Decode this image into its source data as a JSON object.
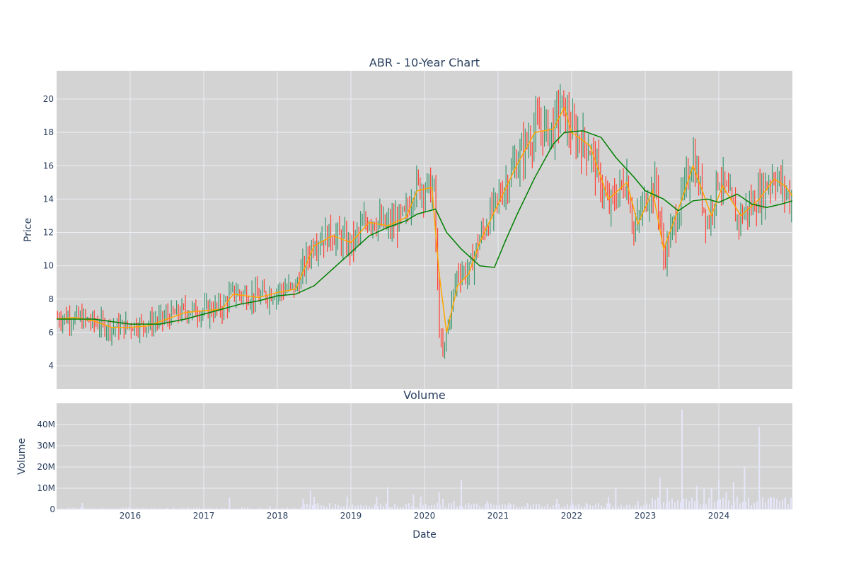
{
  "chart_data": [
    {
      "type": "candlestick",
      "title": "ABR - 10-Year Chart",
      "ylabel": "Price",
      "ylim": [
        2.6,
        21.7
      ],
      "yticks": [
        4,
        6,
        8,
        10,
        12,
        14,
        16,
        18,
        20
      ],
      "xlim": [
        2015.0,
        2025.0
      ],
      "grid": true,
      "legend": "none",
      "colors": {
        "increasing": "#3d9970",
        "decreasing": "#ff4136",
        "short_ma": "#ffa500",
        "long_ma": "#008000",
        "plot_bg": "#d3d3d3",
        "grid": "#ebeef4"
      },
      "series": [
        {
          "role": "price",
          "x": [
            2015.0,
            2015.25,
            2015.5,
            2015.75,
            2016.0,
            2016.25,
            2016.5,
            2016.75,
            2017.0,
            2017.25,
            2017.4,
            2017.75,
            2018.0,
            2018.25,
            2018.5,
            2018.75,
            2019.0,
            2019.25,
            2019.5,
            2019.75,
            2019.85,
            2020.0,
            2020.13,
            2020.2,
            2020.25,
            2020.3,
            2020.45,
            2020.6,
            2020.75,
            2021.0,
            2021.25,
            2021.5,
            2021.75,
            2021.85,
            2022.0,
            2022.25,
            2022.5,
            2022.75,
            2022.85,
            2023.0,
            2023.15,
            2023.25,
            2023.5,
            2023.65,
            2023.85,
            2024.0,
            2024.25,
            2024.5,
            2024.75,
            2024.9,
            2025.0
          ],
          "y": [
            6.9,
            6.9,
            6.6,
            6.3,
            6.4,
            6.5,
            6.9,
            7.3,
            7.3,
            7.5,
            8.4,
            8.1,
            8.5,
            8.7,
            11.5,
            11.9,
            11.2,
            12.9,
            12.3,
            13.0,
            14.7,
            14.8,
            14.5,
            6.3,
            4.5,
            6.0,
            9.7,
            9.6,
            11.6,
            14.0,
            16.2,
            18.2,
            18.2,
            19.7,
            18.0,
            17.0,
            13.5,
            15.2,
            12.0,
            14.0,
            14.9,
            10.5,
            14.0,
            16.5,
            12.5,
            15.5,
            12.8,
            13.9,
            15.5,
            14.5,
            13.8
          ]
        },
        {
          "role": "short_ma",
          "x": [
            2015.0,
            2015.25,
            2015.5,
            2015.75,
            2016.0,
            2016.25,
            2016.5,
            2016.75,
            2017.0,
            2017.25,
            2017.4,
            2017.75,
            2018.0,
            2018.25,
            2018.5,
            2018.75,
            2019.0,
            2019.25,
            2019.5,
            2019.75,
            2019.9,
            2020.1,
            2020.2,
            2020.3,
            2020.45,
            2020.6,
            2020.75,
            2021.0,
            2021.25,
            2021.5,
            2021.75,
            2021.9,
            2022.0,
            2022.25,
            2022.5,
            2022.75,
            2022.9,
            2023.1,
            2023.25,
            2023.5,
            2023.65,
            2023.9,
            2024.05,
            2024.3,
            2024.55,
            2024.75,
            2024.9,
            2025.0
          ],
          "y": [
            6.8,
            6.9,
            6.7,
            6.3,
            6.3,
            6.4,
            6.8,
            7.2,
            7.3,
            7.4,
            8.3,
            8.1,
            8.4,
            8.6,
            11.2,
            11.8,
            11.4,
            12.6,
            12.4,
            12.9,
            14.5,
            14.7,
            9.5,
            6.0,
            8.8,
            9.5,
            11.4,
            13.7,
            16.0,
            18.0,
            18.2,
            19.5,
            18.0,
            17.2,
            14.0,
            15.0,
            12.5,
            14.5,
            11.0,
            14.0,
            16.0,
            13.0,
            14.8,
            13.0,
            14.0,
            15.2,
            14.8,
            14.2
          ]
        },
        {
          "role": "long_ma",
          "x": [
            2015.0,
            2015.5,
            2016.0,
            2016.4,
            2016.75,
            2017.0,
            2017.25,
            2017.5,
            2017.75,
            2018.0,
            2018.25,
            2018.5,
            2018.75,
            2019.0,
            2019.25,
            2019.5,
            2019.75,
            2019.9,
            2020.15,
            2020.3,
            2020.5,
            2020.75,
            2020.95,
            2021.1,
            2021.25,
            2021.5,
            2021.75,
            2021.9,
            2022.15,
            2022.4,
            2022.6,
            2022.85,
            2023.0,
            2023.25,
            2023.45,
            2023.65,
            2023.85,
            2024.0,
            2024.25,
            2024.45,
            2024.65,
            2024.85,
            2025.0
          ],
          "y": [
            6.8,
            6.8,
            6.5,
            6.5,
            6.8,
            7.1,
            7.4,
            7.7,
            7.9,
            8.2,
            8.3,
            8.8,
            9.8,
            10.8,
            11.8,
            12.3,
            12.7,
            13.1,
            13.4,
            12.0,
            11.0,
            10.0,
            9.9,
            11.5,
            13.0,
            15.3,
            17.3,
            18.0,
            18.1,
            17.7,
            16.5,
            15.3,
            14.5,
            14.0,
            13.3,
            13.9,
            14.0,
            13.8,
            14.3,
            13.7,
            13.5,
            13.7,
            13.9
          ]
        }
      ]
    },
    {
      "type": "bar",
      "title": "Volume",
      "xlabel": "Date",
      "ylabel": "Volume",
      "ylim": [
        0,
        50000000
      ],
      "yticks": [
        0,
        10000000,
        20000000,
        30000000,
        40000000
      ],
      "ytick_labels": [
        "0",
        "10M",
        "20M",
        "30M",
        "40M"
      ],
      "xticks": [
        2016,
        2017,
        2018,
        2019,
        2020,
        2021,
        2022,
        2023,
        2024
      ],
      "xtick_labels": [
        "2016",
        "2017",
        "2018",
        "2019",
        "2020",
        "2021",
        "2022",
        "2023",
        "2024"
      ],
      "grid": true,
      "colors": {
        "bar": "#e6e6fa",
        "plot_bg": "#d3d3d3",
        "grid": "#ebeef4"
      },
      "x": [
        2015.35,
        2015.9,
        2016.5,
        2017.35,
        2017.9,
        2018.35,
        2018.45,
        2018.5,
        2018.55,
        2018.95,
        2019.35,
        2019.5,
        2019.85,
        2019.95,
        2020.2,
        2020.25,
        2020.4,
        2020.5,
        2020.6,
        2020.85,
        2021.15,
        2021.4,
        2021.8,
        2022.0,
        2022.2,
        2022.5,
        2022.6,
        2022.9,
        2023.2,
        2023.3,
        2023.5,
        2023.7,
        2023.8,
        2023.9,
        2024.0,
        2024.1,
        2024.2,
        2024.35,
        2024.55,
        2024.7,
        2024.9
      ],
      "values": [
        3000000,
        800000,
        600000,
        5500000,
        1500000,
        5000000,
        9000000,
        6000000,
        3000000,
        6000000,
        6000000,
        10500000,
        7000000,
        6000000,
        8000000,
        5000000,
        4000000,
        14000000,
        3000000,
        4000000,
        3000000,
        3000000,
        5000000,
        4000000,
        3000000,
        6000000,
        10000000,
        4000000,
        15000000,
        10000000,
        47000000,
        11000000,
        10000000,
        10000000,
        14000000,
        8000000,
        13000000,
        20000000,
        39000000,
        6000000,
        5000000
      ]
    }
  ]
}
